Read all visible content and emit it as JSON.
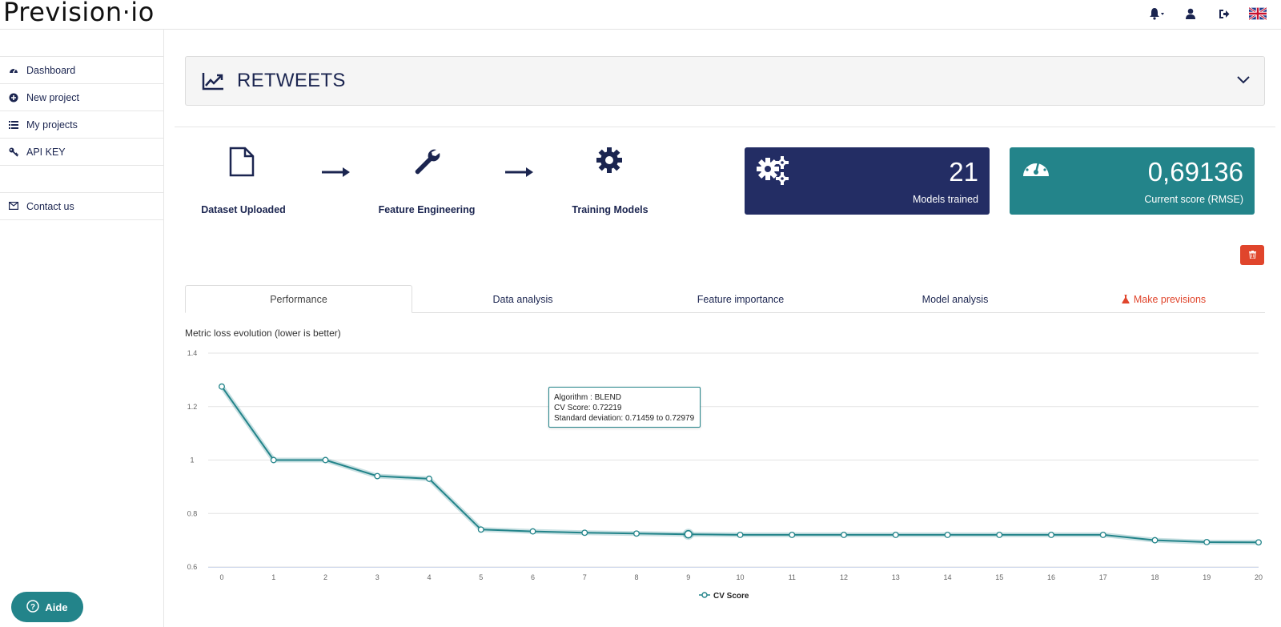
{
  "app": {
    "logo_text": "Prevision·io"
  },
  "sidebar": {
    "items": [
      {
        "label": "Dashboard",
        "icon": "dashboard-icon"
      },
      {
        "label": "New project",
        "icon": "plus-circle-icon"
      },
      {
        "label": "My projects",
        "icon": "list-icon"
      },
      {
        "label": "API KEY",
        "icon": "key-icon"
      },
      {
        "label": "Contact us",
        "icon": "envelope-icon"
      }
    ],
    "help_button": "Aide"
  },
  "project": {
    "title": "RETWEETS"
  },
  "pipeline": {
    "steps": [
      "Dataset Uploaded",
      "Feature Engineering",
      "Training Models"
    ]
  },
  "cards": {
    "models": {
      "value": "21",
      "label": "Models trained"
    },
    "score": {
      "value": "0,69136",
      "label": "Current score (RMSE)"
    }
  },
  "tabs": [
    "Performance",
    "Data analysis",
    "Feature importance",
    "Model analysis",
    "Make previsions"
  ],
  "chart": {
    "title": "Metric loss evolution (lower is better)",
    "legend": "CV Score",
    "tooltip": {
      "line1": "Algorithm : BLEND",
      "line2": "CV Score: 0.72219",
      "line3": "Standard deviation: 0.71459 to 0.72979"
    }
  },
  "chart_data": {
    "type": "line",
    "title": "Metric loss evolution (lower is better)",
    "x": [
      0,
      1,
      2,
      3,
      4,
      5,
      6,
      7,
      8,
      9,
      10,
      11,
      12,
      13,
      14,
      15,
      16,
      17,
      18,
      19,
      20
    ],
    "series": [
      {
        "name": "CV Score",
        "values": [
          1.275,
          1.0,
          1.0,
          0.94,
          0.93,
          0.74,
          0.733,
          0.728,
          0.725,
          0.72219,
          0.72,
          0.72,
          0.72,
          0.72,
          0.72,
          0.72,
          0.72,
          0.72,
          0.7,
          0.693,
          0.692
        ]
      }
    ],
    "yticks": [
      "0.6",
      "0.8",
      "1",
      "1.2",
      "1.4"
    ],
    "ylim": [
      0.6,
      1.4
    ],
    "xlim": [
      0,
      20
    ],
    "grid": true,
    "legend_position": "bottom",
    "color": "#23848a",
    "highlight_index": 9
  }
}
